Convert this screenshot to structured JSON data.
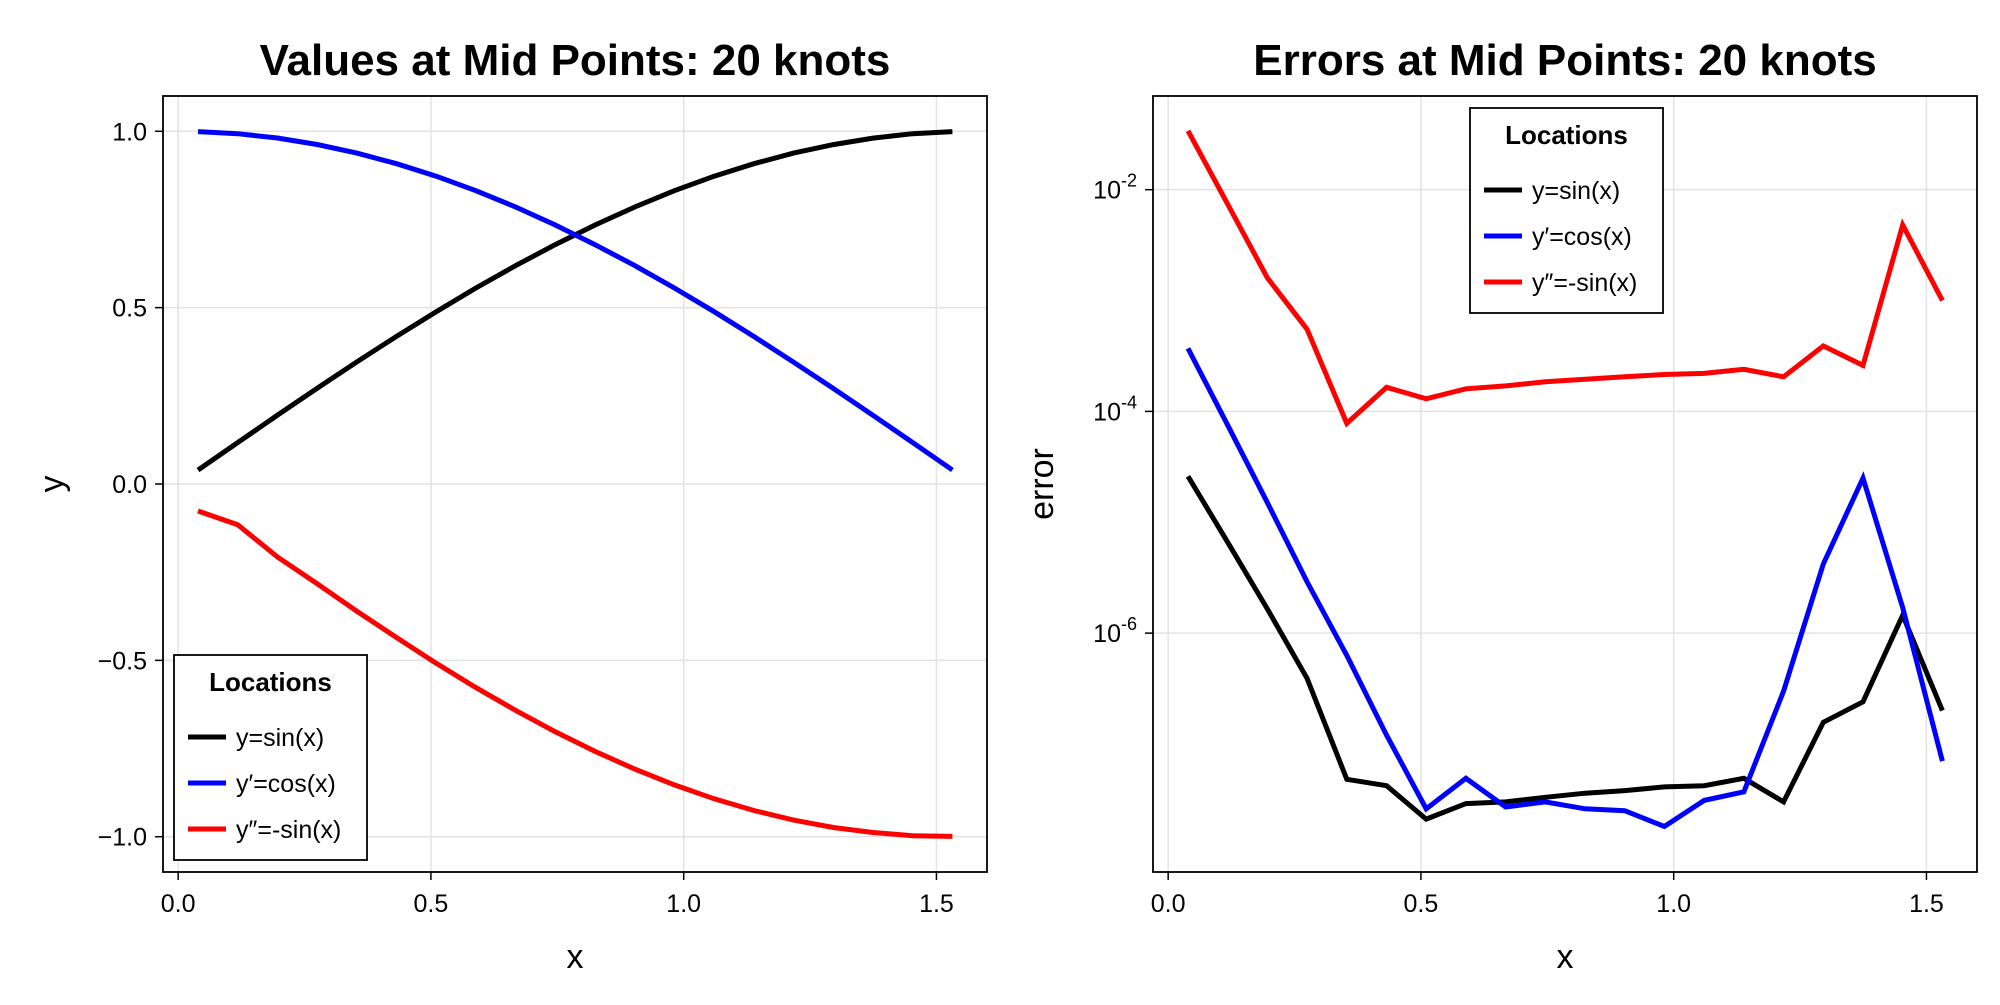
{
  "chart_data": [
    {
      "type": "line",
      "title": "Values at Mid Points: 20 knots",
      "xlabel": "x",
      "ylabel": "y",
      "xlim": [
        -0.03,
        1.6
      ],
      "ylim": [
        -1.1,
        1.1
      ],
      "yscale": "linear",
      "grid": true,
      "xticks": [
        0.0,
        0.5,
        1.0,
        1.5
      ],
      "xtick_labels": [
        "0.0",
        "0.5",
        "1.0",
        "1.5"
      ],
      "yticks": [
        -1.0,
        -0.5,
        0.0,
        0.5,
        1.0
      ],
      "ytick_labels": [
        "−1.0",
        "−0.5",
        "0.0",
        "0.5",
        "1.0"
      ],
      "legend": {
        "title": "Locations",
        "position": "bottom-left"
      },
      "x": [
        0.0393,
        0.1178,
        0.1963,
        0.2749,
        0.3534,
        0.432,
        0.5105,
        0.589,
        0.6676,
        0.7461,
        0.8247,
        0.9032,
        0.9817,
        1.0603,
        1.1388,
        1.2174,
        1.2959,
        1.3744,
        1.453,
        1.5315
      ],
      "series": [
        {
          "name": "y=sin(x)",
          "color": "#000000",
          "values": [
            0.0393,
            0.1175,
            0.1951,
            0.2714,
            0.3461,
            0.4187,
            0.4886,
            0.5556,
            0.6191,
            0.6788,
            0.7343,
            0.7853,
            0.8315,
            0.8725,
            0.9081,
            0.9381,
            0.9623,
            0.9807,
            0.993,
            0.9992
          ]
        },
        {
          "name": "y′=cos(x)",
          "color": "#0000ff",
          "values": [
            0.9992,
            0.9931,
            0.9808,
            0.9625,
            0.9381,
            0.9081,
            0.8726,
            0.8315,
            0.7854,
            0.7342,
            0.6785,
            0.6191,
            0.5556,
            0.4885,
            0.4181,
            0.3454,
            0.271,
            0.1949,
            0.1174,
            0.0397
          ]
        },
        {
          "name": "y″=-sin(x)",
          "color": "#ff0000",
          "values": [
            -0.0765,
            -0.1155,
            -0.2066,
            -0.2827,
            -0.3605,
            -0.4355,
            -0.5082,
            -0.5771,
            -0.6419,
            -0.7025,
            -0.7581,
            -0.8083,
            -0.853,
            -0.8925,
            -0.9256,
            -0.9529,
            -0.9738,
            -0.9879,
            -0.997,
            -0.999
          ]
        }
      ]
    },
    {
      "type": "line",
      "title": "Errors at Mid Points: 20 knots",
      "xlabel": "x",
      "ylabel": "error",
      "xlim": [
        -0.03,
        1.6
      ],
      "ylim": [
        7e-09,
        0.07
      ],
      "yscale": "log",
      "grid": true,
      "xticks": [
        0.0,
        0.5,
        1.0,
        1.5
      ],
      "xtick_labels": [
        "0.0",
        "0.5",
        "1.0",
        "1.5"
      ],
      "yticks": [
        1e-06,
        0.0001,
        0.01
      ],
      "ytick_labels": [
        {
          "base": "10",
          "exp": "-6"
        },
        {
          "base": "10",
          "exp": "-4"
        },
        {
          "base": "10",
          "exp": "-2"
        }
      ],
      "legend": {
        "title": "Locations",
        "position": "top-center"
      },
      "x": [
        0.0393,
        0.1178,
        0.1963,
        0.2749,
        0.3534,
        0.432,
        0.5105,
        0.589,
        0.6676,
        0.7461,
        0.8247,
        0.9032,
        0.9817,
        1.0603,
        1.1388,
        1.2174,
        1.2959,
        1.3744,
        1.453,
        1.5315
      ],
      "series": [
        {
          "name": "y=sin(x)",
          "color": "#000000",
          "values": [
            2.6e-05,
            6.6e-06,
            1.65e-06,
            3.9e-07,
            4.8e-08,
            4.2e-08,
            2.1e-08,
            2.9e-08,
            3e-08,
            3.3e-08,
            3.6e-08,
            3.8e-08,
            4.1e-08,
            4.2e-08,
            4.9e-08,
            3e-08,
            1.57e-07,
            2.4e-07,
            1.45e-06,
            2e-07
          ]
        },
        {
          "name": "y′=cos(x)",
          "color": "#0000ff",
          "values": [
            0.00037,
            7.5e-05,
            1.5e-05,
            2.9e-06,
            6.3e-07,
            1.2e-07,
            2.6e-08,
            4.9e-08,
            2.7e-08,
            3e-08,
            2.6e-08,
            2.5e-08,
            1.8e-08,
            3.1e-08,
            3.7e-08,
            3e-07,
            4.2e-06,
            2.5e-05,
            1.7e-06,
            7e-08
          ]
        },
        {
          "name": "y″=-sin(x)",
          "color": "#ff0000",
          "values": [
            0.034,
            0.0074,
            0.0016,
            0.00055,
            7.8e-05,
            0.000165,
            0.00013,
            0.00016,
            0.00017,
            0.000185,
            0.000195,
            0.000205,
            0.000215,
            0.00022,
            0.00024,
            0.000205,
            0.00039,
            0.00026,
            0.0048,
            0.001
          ]
        }
      ]
    }
  ]
}
